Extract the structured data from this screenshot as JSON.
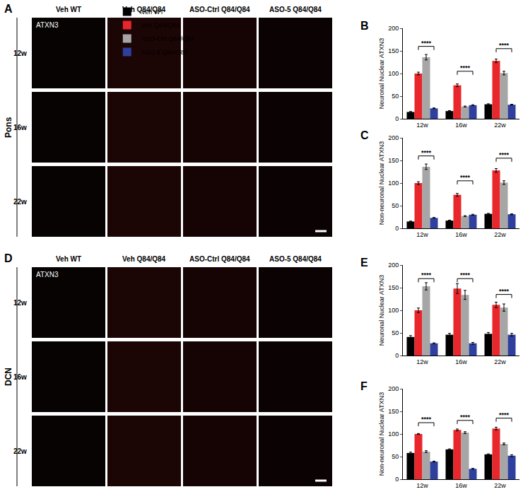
{
  "figure_panels": [
    {
      "label": "A",
      "region": "Pons",
      "stain": "ATXN3",
      "columns": [
        "Veh WT",
        "Veh Q84/Q84",
        "ASO-Ctrl Q84/Q84",
        "ASO-5 Q84/Q84"
      ],
      "rows": [
        "12w",
        "16w",
        "22w"
      ]
    },
    {
      "label": "D",
      "region": "DCN",
      "stain": "ATXN3",
      "columns": [
        "Veh WT",
        "Veh Q84/Q84",
        "ASO-Ctrl Q84/Q84",
        "ASO-5 Q84/Q84"
      ],
      "rows": [
        "12w",
        "16w",
        "22w"
      ]
    }
  ],
  "chart_data": [
    {
      "panel": "B",
      "type": "bar",
      "ylabel": "Neuronal Nuclear ATXN3",
      "categories": [
        "12w",
        "16w",
        "22w"
      ],
      "legend": "top",
      "grid": false,
      "ylim": [
        0,
        200
      ],
      "yticks": [
        0,
        50,
        100,
        150,
        200
      ],
      "series": [
        {
          "name": "Veh WT",
          "color": "#000000",
          "values": [
            15,
            17,
            32
          ],
          "errors": [
            1,
            1,
            1
          ]
        },
        {
          "name": "Veh Q84/Q84",
          "color": "#e8262b",
          "values": [
            100,
            74,
            128
          ],
          "errors": [
            3,
            3,
            4
          ]
        },
        {
          "name": "ASO-Ctrl Q84/Q84",
          "color": "#a6a6a6",
          "values": [
            136,
            27,
            101
          ],
          "errors": [
            6,
            1,
            4
          ]
        },
        {
          "name": "ASO-5 Q84/Q84",
          "color": "#2e3f9e",
          "values": [
            23,
            30,
            31
          ],
          "errors": [
            1,
            1,
            1
          ]
        }
      ],
      "significance": [
        {
          "category": "12w",
          "from": "Veh Q84/Q84",
          "to": "ASO-5 Q84/Q84",
          "y": 160,
          "label": "****"
        },
        {
          "category": "16w",
          "from": "Veh Q84/Q84",
          "to": "ASO-5 Q84/Q84",
          "y": 105,
          "label": "****"
        },
        {
          "category": "22w",
          "from": "Veh Q84/Q84",
          "to": "ASO-5 Q84/Q84",
          "y": 155,
          "label": "****"
        }
      ]
    },
    {
      "panel": "C",
      "type": "bar",
      "ylabel": "Non-neuronal Nuclear ATXN3",
      "categories": [
        "12w",
        "16w",
        "22w"
      ],
      "grid": false,
      "ylim": [
        0,
        200
      ],
      "yticks": [
        0,
        50,
        100,
        150,
        200
      ],
      "series": [
        {
          "name": "Veh WT",
          "color": "#000000",
          "values": [
            15,
            17,
            32
          ],
          "errors": [
            1,
            1,
            1
          ]
        },
        {
          "name": "Veh Q84/Q84",
          "color": "#e8262b",
          "values": [
            100,
            74,
            128
          ],
          "errors": [
            3,
            3,
            4
          ]
        },
        {
          "name": "ASO-Ctrl Q84/Q84",
          "color": "#a6a6a6",
          "values": [
            136,
            27,
            101
          ],
          "errors": [
            6,
            1,
            4
          ]
        },
        {
          "name": "ASO-5 Q84/Q84",
          "color": "#2e3f9e",
          "values": [
            23,
            30,
            31
          ],
          "errors": [
            1,
            1,
            1
          ]
        }
      ],
      "significance": [
        {
          "category": "12w",
          "from": "Veh Q84/Q84",
          "to": "ASO-5 Q84/Q84",
          "y": 160,
          "label": "****"
        },
        {
          "category": "16w",
          "from": "Veh Q84/Q84",
          "to": "ASO-5 Q84/Q84",
          "y": 105,
          "label": "****"
        },
        {
          "category": "22w",
          "from": "Veh Q84/Q84",
          "to": "ASO-5 Q84/Q84",
          "y": 155,
          "label": "****"
        }
      ]
    },
    {
      "panel": "E",
      "type": "bar",
      "ylabel": "Neuronal Nuclear ATXN3",
      "categories": [
        "12w",
        "16w",
        "22w"
      ],
      "grid": false,
      "ylim": [
        0,
        200
      ],
      "yticks": [
        0,
        50,
        100,
        150,
        200
      ],
      "series": [
        {
          "name": "Veh WT",
          "color": "#000000",
          "values": [
            41,
            46,
            48
          ],
          "errors": [
            3,
            3,
            3
          ]
        },
        {
          "name": "Veh Q84/Q84",
          "color": "#e8262b",
          "values": [
            100,
            148,
            112
          ],
          "errors": [
            5,
            11,
            6
          ]
        },
        {
          "name": "ASO-Ctrl Q84/Q84",
          "color": "#a6a6a6",
          "values": [
            153,
            134,
            106
          ],
          "errors": [
            8,
            10,
            8
          ]
        },
        {
          "name": "ASO-5 Q84/Q84",
          "color": "#2e3f9e",
          "values": [
            27,
            27,
            46
          ],
          "errors": [
            1,
            2,
            3
          ]
        }
      ],
      "significance": [
        {
          "category": "12w",
          "from": "Veh Q84/Q84",
          "to": "ASO-5 Q84/Q84",
          "y": 170,
          "label": "****"
        },
        {
          "category": "16w",
          "from": "Veh Q84/Q84",
          "to": "ASO-5 Q84/Q84",
          "y": 170,
          "label": "****"
        },
        {
          "category": "22w",
          "from": "Veh Q84/Q84",
          "to": "ASO-5 Q84/Q84",
          "y": 135,
          "label": "****"
        }
      ]
    },
    {
      "panel": "F",
      "type": "bar",
      "ylabel": "Non-neuronal Nuclear ATXN3",
      "categories": [
        "12w",
        "16w",
        "22w"
      ],
      "grid": false,
      "ylim": [
        0,
        200
      ],
      "yticks": [
        0,
        50,
        100,
        150,
        200
      ],
      "series": [
        {
          "name": "Veh WT",
          "color": "#000000",
          "values": [
            58,
            66,
            55
          ],
          "errors": [
            2,
            1,
            1
          ]
        },
        {
          "name": "Veh Q84/Q84",
          "color": "#e8262b",
          "values": [
            100,
            109,
            112
          ],
          "errors": [
            1,
            2,
            3
          ]
        },
        {
          "name": "ASO-Ctrl Q84/Q84",
          "color": "#a6a6a6",
          "values": [
            61,
            103,
            78
          ],
          "errors": [
            2,
            2,
            2
          ]
        },
        {
          "name": "ASO-5 Q84/Q84",
          "color": "#2e3f9e",
          "values": [
            39,
            23,
            52
          ],
          "errors": [
            1,
            1,
            2
          ]
        }
      ],
      "significance": [
        {
          "category": "12w",
          "from": "Veh Q84/Q84",
          "to": "ASO-5 Q84/Q84",
          "y": 125,
          "label": "****"
        },
        {
          "category": "16w",
          "from": "Veh Q84/Q84",
          "to": "ASO-5 Q84/Q84",
          "y": 130,
          "label": "****"
        },
        {
          "category": "22w",
          "from": "Veh Q84/Q84",
          "to": "ASO-5 Q84/Q84",
          "y": 135,
          "label": "****"
        }
      ]
    }
  ]
}
